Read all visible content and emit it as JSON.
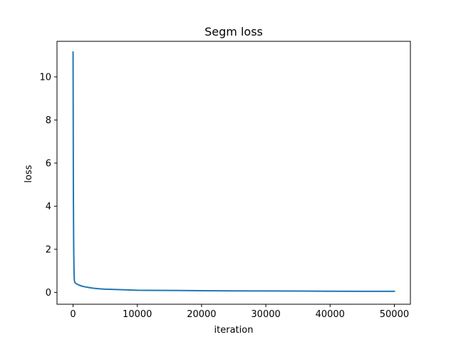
{
  "chart_data": {
    "type": "line",
    "title": "Segm loss",
    "xlabel": "iteration",
    "ylabel": "loss",
    "xlim": [
      -2500,
      52500
    ],
    "ylim": [
      -0.55,
      11.65
    ],
    "xticks": [
      0,
      10000,
      20000,
      30000,
      40000,
      50000
    ],
    "xtick_labels": [
      "0",
      "10000",
      "20000",
      "30000",
      "40000",
      "50000"
    ],
    "yticks": [
      0,
      2,
      4,
      6,
      8,
      10
    ],
    "ytick_labels": [
      "0",
      "2",
      "4",
      "6",
      "8",
      "10"
    ],
    "grid": false,
    "series": [
      {
        "color": "#1f77b4",
        "x": [
          0,
          50,
          100,
          150,
          200,
          300,
          500,
          800,
          1000,
          1500,
          2000,
          3000,
          4000,
          5000,
          6000,
          8000,
          10000,
          12000,
          15000,
          20000,
          25000,
          30000,
          35000,
          40000,
          45000,
          50000
        ],
        "y": [
          11.15,
          4.5,
          2.0,
          1.0,
          0.55,
          0.45,
          0.4,
          0.36,
          0.33,
          0.28,
          0.25,
          0.2,
          0.17,
          0.15,
          0.14,
          0.12,
          0.1,
          0.095,
          0.09,
          0.08,
          0.07,
          0.065,
          0.06,
          0.055,
          0.05,
          0.048
        ]
      }
    ]
  }
}
